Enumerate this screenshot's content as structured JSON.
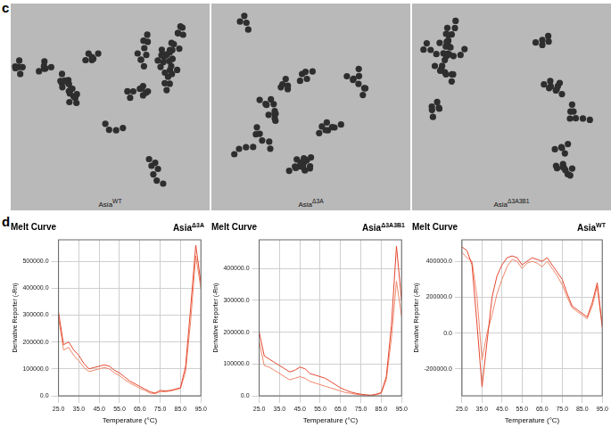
{
  "panel_labels": [
    "c",
    "d"
  ],
  "micrographs": [
    {
      "caption": {
        "base": "Asia",
        "sup": "WT"
      }
    },
    {
      "caption": {
        "base": "Asia",
        "sup": "Δ3A"
      }
    },
    {
      "caption": {
        "base": "Asia",
        "sup": "Δ3A3B1"
      }
    }
  ],
  "chart_data": [
    {
      "type": "line",
      "title": "Melt Curve",
      "annotation": {
        "base": "Asia",
        "sup": "Δ3A"
      },
      "x_label": "Temperature (°C)",
      "y_label": "Derivative Reporter (-Rn)",
      "grid": true,
      "x": [
        25,
        27.5,
        30,
        32.5,
        35,
        37.5,
        40,
        42.5,
        45,
        47.5,
        50,
        52.5,
        55,
        57.5,
        60,
        62.5,
        65,
        67.5,
        70,
        72.5,
        75,
        77.5,
        80,
        82.5,
        85,
        87.5,
        90,
        92.5,
        95
      ],
      "series": [
        {
          "color": "#e4472f",
          "values": [
            310000,
            190000,
            200000,
            170000,
            150000,
            120000,
            100000,
            105000,
            110000,
            115000,
            110000,
            95000,
            85000,
            70000,
            55000,
            45000,
            35000,
            25000,
            15000,
            10000,
            20000,
            18000,
            20000,
            25000,
            30000,
            110000,
            330000,
            560000,
            420000
          ]
        },
        {
          "color": "#f0866a",
          "values": [
            290000,
            170000,
            180000,
            150000,
            130000,
            105000,
            90000,
            95000,
            100000,
            105000,
            100000,
            85000,
            75000,
            60000,
            48000,
            38000,
            28000,
            20000,
            10000,
            8000,
            15000,
            15000,
            18000,
            22000,
            28000,
            90000,
            280000,
            520000,
            400000
          ]
        }
      ],
      "xlim": [
        25,
        95
      ],
      "xticks": [
        {
          "value": 25,
          "label": "25.0"
        },
        {
          "value": 35,
          "label": "35.0"
        },
        {
          "value": 45,
          "label": "45.0"
        },
        {
          "value": 55,
          "label": "55.0"
        },
        {
          "value": 65,
          "label": "65.0"
        },
        {
          "value": 75,
          "label": "75.0"
        },
        {
          "value": 85,
          "label": "85.0"
        },
        {
          "value": 95,
          "label": "95.0"
        }
      ],
      "ylim": [
        0,
        580000
      ],
      "yticks": [
        {
          "value": 0,
          "label": "0.0"
        },
        {
          "value": 100000,
          "label": "100000.0"
        },
        {
          "value": 200000,
          "label": "200000.0"
        },
        {
          "value": 300000,
          "label": "300000.0"
        },
        {
          "value": 400000,
          "label": "400000.0"
        },
        {
          "value": 500000,
          "label": "500000.0"
        }
      ]
    },
    {
      "type": "line",
      "title": "Melt Curve",
      "annotation": {
        "base": "Asia",
        "sup": "Δ3A3B1"
      },
      "x_label": "Temperature (°C)",
      "y_label": "Derivative Reporter (-Rn)",
      "grid": true,
      "x": [
        25,
        27.5,
        30,
        32.5,
        35,
        37.5,
        40,
        42.5,
        45,
        47.5,
        50,
        52.5,
        55,
        57.5,
        60,
        62.5,
        65,
        67.5,
        70,
        72.5,
        75,
        77.5,
        80,
        82.5,
        85,
        87.5,
        90,
        92.5,
        95
      ],
      "series": [
        {
          "color": "#e4472f",
          "values": [
            200000,
            125000,
            115000,
            105000,
            95000,
            85000,
            75000,
            80000,
            90000,
            85000,
            70000,
            65000,
            60000,
            55000,
            45000,
            35000,
            25000,
            18000,
            12000,
            8000,
            5000,
            3000,
            2000,
            5000,
            10000,
            60000,
            220000,
            470000,
            300000
          ]
        },
        {
          "color": "#f0866a",
          "values": [
            170000,
            95000,
            90000,
            80000,
            70000,
            60000,
            50000,
            55000,
            60000,
            55000,
            45000,
            40000,
            35000,
            30000,
            25000,
            20000,
            15000,
            10000,
            8000,
            5000,
            3000,
            2000,
            1000,
            3000,
            8000,
            50000,
            180000,
            360000,
            250000
          ]
        }
      ],
      "xlim": [
        25,
        95
      ],
      "xticks": [
        {
          "value": 25,
          "label": "25.0"
        },
        {
          "value": 35,
          "label": "35.0"
        },
        {
          "value": 45,
          "label": "45.0"
        },
        {
          "value": 55,
          "label": "55.0"
        },
        {
          "value": 65,
          "label": "65.0"
        },
        {
          "value": 75,
          "label": "75.0"
        },
        {
          "value": 85,
          "label": "85.0"
        },
        {
          "value": 95,
          "label": "95.0"
        }
      ],
      "ylim": [
        0,
        490000
      ],
      "yticks": [
        {
          "value": 0,
          "label": "0.0"
        },
        {
          "value": 100000,
          "label": "100000.0"
        },
        {
          "value": 200000,
          "label": "200000.0"
        },
        {
          "value": 300000,
          "label": "300000.0"
        },
        {
          "value": 400000,
          "label": "400000.0"
        }
      ]
    },
    {
      "type": "line",
      "title": "Melt Curve",
      "annotation": {
        "base": "Asia",
        "sup": "WT"
      },
      "x_label": "Temperature (°C)",
      "y_label": "Derivative Reporter (-Rn)",
      "grid": true,
      "x": [
        25,
        27.5,
        30,
        32.5,
        35,
        37.5,
        40,
        42.5,
        45,
        47.5,
        50,
        52.5,
        55,
        57.5,
        60,
        62.5,
        65,
        67.5,
        70,
        72.5,
        75,
        77.5,
        80,
        82.5,
        85,
        87.5,
        90,
        92.5,
        95
      ],
      "series": [
        {
          "color": "#e4472f",
          "values": [
            480000,
            460000,
            380000,
            50000,
            -300000,
            -50000,
            200000,
            320000,
            380000,
            420000,
            430000,
            420000,
            380000,
            400000,
            420000,
            410000,
            400000,
            420000,
            380000,
            340000,
            300000,
            220000,
            150000,
            130000,
            110000,
            90000,
            170000,
            280000,
            40000
          ]
        },
        {
          "color": "#f0866a",
          "values": [
            450000,
            420000,
            400000,
            200000,
            -150000,
            0,
            100000,
            220000,
            300000,
            370000,
            410000,
            400000,
            360000,
            390000,
            400000,
            390000,
            370000,
            400000,
            360000,
            320000,
            270000,
            200000,
            140000,
            120000,
            100000,
            80000,
            150000,
            260000,
            30000
          ]
        }
      ],
      "xlim": [
        25,
        95
      ],
      "xticks": [
        {
          "value": 25,
          "label": "25.0"
        },
        {
          "value": 35,
          "label": "35.0"
        },
        {
          "value": 45,
          "label": "45.0"
        },
        {
          "value": 55,
          "label": "55.0"
        },
        {
          "value": 65,
          "label": "65.0"
        },
        {
          "value": 75,
          "label": "75.0"
        },
        {
          "value": 85,
          "label": "85.0"
        },
        {
          "value": 95,
          "label": "95.0"
        }
      ],
      "ylim": [
        -350000,
        520000
      ],
      "yticks": [
        {
          "value": -200000,
          "label": "-200000.0"
        },
        {
          "value": 0,
          "label": "0.0"
        },
        {
          "value": 200000,
          "label": "200000.0"
        },
        {
          "value": 400000,
          "label": "400000.0"
        }
      ]
    }
  ]
}
